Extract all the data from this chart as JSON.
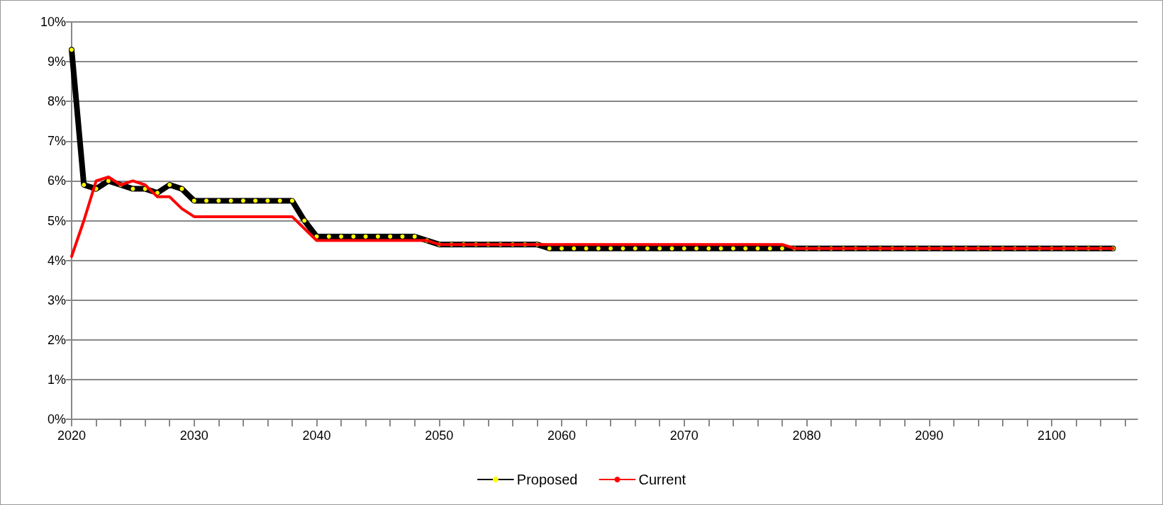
{
  "chart_data": {
    "type": "line",
    "x": [
      2020,
      2021,
      2022,
      2023,
      2024,
      2025,
      2026,
      2027,
      2028,
      2029,
      2030,
      2031,
      2032,
      2033,
      2034,
      2035,
      2036,
      2037,
      2038,
      2039,
      2040,
      2041,
      2042,
      2043,
      2044,
      2045,
      2046,
      2047,
      2048,
      2049,
      2050,
      2051,
      2052,
      2053,
      2054,
      2055,
      2056,
      2057,
      2058,
      2059,
      2060,
      2061,
      2062,
      2063,
      2064,
      2065,
      2066,
      2067,
      2068,
      2069,
      2070,
      2071,
      2072,
      2073,
      2074,
      2075,
      2076,
      2077,
      2078,
      2079,
      2080,
      2081,
      2082,
      2083,
      2084,
      2085,
      2086,
      2087,
      2088,
      2089,
      2090,
      2091,
      2092,
      2093,
      2094,
      2095,
      2096,
      2097,
      2098,
      2099,
      2100,
      2101,
      2102,
      2103,
      2104,
      2105
    ],
    "series": [
      {
        "name": "Proposed",
        "color": "#000000",
        "marker": "circle",
        "values": [
          9.3,
          5.9,
          5.8,
          6.0,
          5.9,
          5.8,
          5.8,
          5.7,
          5.9,
          5.8,
          5.5,
          5.5,
          5.5,
          5.5,
          5.5,
          5.5,
          5.5,
          5.5,
          5.5,
          5.0,
          4.6,
          4.6,
          4.6,
          4.6,
          4.6,
          4.6,
          4.6,
          4.6,
          4.6,
          4.5,
          4.4,
          4.4,
          4.4,
          4.4,
          4.4,
          4.4,
          4.4,
          4.4,
          4.4,
          4.3,
          4.3,
          4.3,
          4.3,
          4.3,
          4.3,
          4.3,
          4.3,
          4.3,
          4.3,
          4.3,
          4.3,
          4.3,
          4.3,
          4.3,
          4.3,
          4.3,
          4.3,
          4.3,
          4.3,
          4.3,
          4.3,
          4.3,
          4.3,
          4.3,
          4.3,
          4.3,
          4.3,
          4.3,
          4.3,
          4.3,
          4.3,
          4.3,
          4.3,
          4.3,
          4.3,
          4.3,
          4.3,
          4.3,
          4.3,
          4.3,
          4.3,
          4.3,
          4.3,
          4.3,
          4.3,
          4.3
        ]
      },
      {
        "name": "Current",
        "color": "#ff0000",
        "marker": "none",
        "values": [
          4.1,
          5.0,
          6.0,
          6.1,
          5.9,
          6.0,
          5.9,
          5.6,
          5.6,
          5.3,
          5.1,
          5.1,
          5.1,
          5.1,
          5.1,
          5.1,
          5.1,
          5.1,
          5.1,
          4.8,
          4.5,
          4.5,
          4.5,
          4.5,
          4.5,
          4.5,
          4.5,
          4.5,
          4.5,
          4.5,
          4.4,
          4.4,
          4.4,
          4.4,
          4.4,
          4.4,
          4.4,
          4.4,
          4.4,
          4.4,
          4.4,
          4.4,
          4.4,
          4.4,
          4.4,
          4.4,
          4.4,
          4.4,
          4.4,
          4.4,
          4.4,
          4.4,
          4.4,
          4.4,
          4.4,
          4.4,
          4.4,
          4.4,
          4.4,
          4.3,
          4.3,
          4.3,
          4.3,
          4.3,
          4.3,
          4.3,
          4.3,
          4.3,
          4.3,
          4.3,
          4.3,
          4.3,
          4.3,
          4.3,
          4.3,
          4.3,
          4.3,
          4.3,
          4.3,
          4.3,
          4.3,
          4.3,
          4.3,
          4.3,
          4.3,
          4.3
        ]
      }
    ],
    "xlim": [
      2020,
      2107
    ],
    "xticks": [
      2020,
      {
        "value": 2022,
        "label": null
      },
      {
        "value": 2024,
        "label": null
      },
      {
        "value": 2026,
        "label": null
      },
      {
        "value": 2028,
        "label": null
      },
      2030,
      {
        "value": 2032,
        "label": null
      },
      {
        "value": 2034,
        "label": null
      },
      {
        "value": 2036,
        "label": null
      },
      {
        "value": 2038,
        "label": null
      },
      2040,
      {
        "value": 2042,
        "label": null
      },
      {
        "value": 2044,
        "label": null
      },
      {
        "value": 2046,
        "label": null
      },
      {
        "value": 2048,
        "label": null
      },
      2050,
      {
        "value": 2052,
        "label": null
      },
      {
        "value": 2054,
        "label": null
      },
      {
        "value": 2056,
        "label": null
      },
      {
        "value": 2058,
        "label": null
      },
      2060,
      {
        "value": 2062,
        "label": null
      },
      {
        "value": 2064,
        "label": null
      },
      {
        "value": 2066,
        "label": null
      },
      {
        "value": 2068,
        "label": null
      },
      2070,
      {
        "value": 2072,
        "label": null
      },
      {
        "value": 2074,
        "label": null
      },
      {
        "value": 2076,
        "label": null
      },
      {
        "value": 2078,
        "label": null
      },
      2080,
      {
        "value": 2082,
        "label": null
      },
      {
        "value": 2084,
        "label": null
      },
      {
        "value": 2086,
        "label": null
      },
      {
        "value": 2088,
        "label": null
      },
      2090,
      {
        "value": 2092,
        "label": null
      },
      {
        "value": 2094,
        "label": null
      },
      {
        "value": 2096,
        "label": null
      },
      {
        "value": 2098,
        "label": null
      },
      2100,
      {
        "value": 2102,
        "label": null
      },
      {
        "value": 2104,
        "label": null
      },
      {
        "value": 2106,
        "label": null
      }
    ],
    "ylim": [
      0,
      10
    ],
    "yticks": [
      {
        "value": 0,
        "label": "0%"
      },
      {
        "value": 1,
        "label": "1%"
      },
      {
        "value": 2,
        "label": "2%"
      },
      {
        "value": 3,
        "label": "3%"
      },
      {
        "value": 4,
        "label": "4%"
      },
      {
        "value": 5,
        "label": "5%"
      },
      {
        "value": 6,
        "label": "6%"
      },
      {
        "value": 7,
        "label": "7%"
      },
      {
        "value": 8,
        "label": "8%"
      },
      {
        "value": 9,
        "label": "9%"
      },
      {
        "value": 10,
        "label": "10%"
      }
    ],
    "grid": "y",
    "legend": "bottom"
  }
}
